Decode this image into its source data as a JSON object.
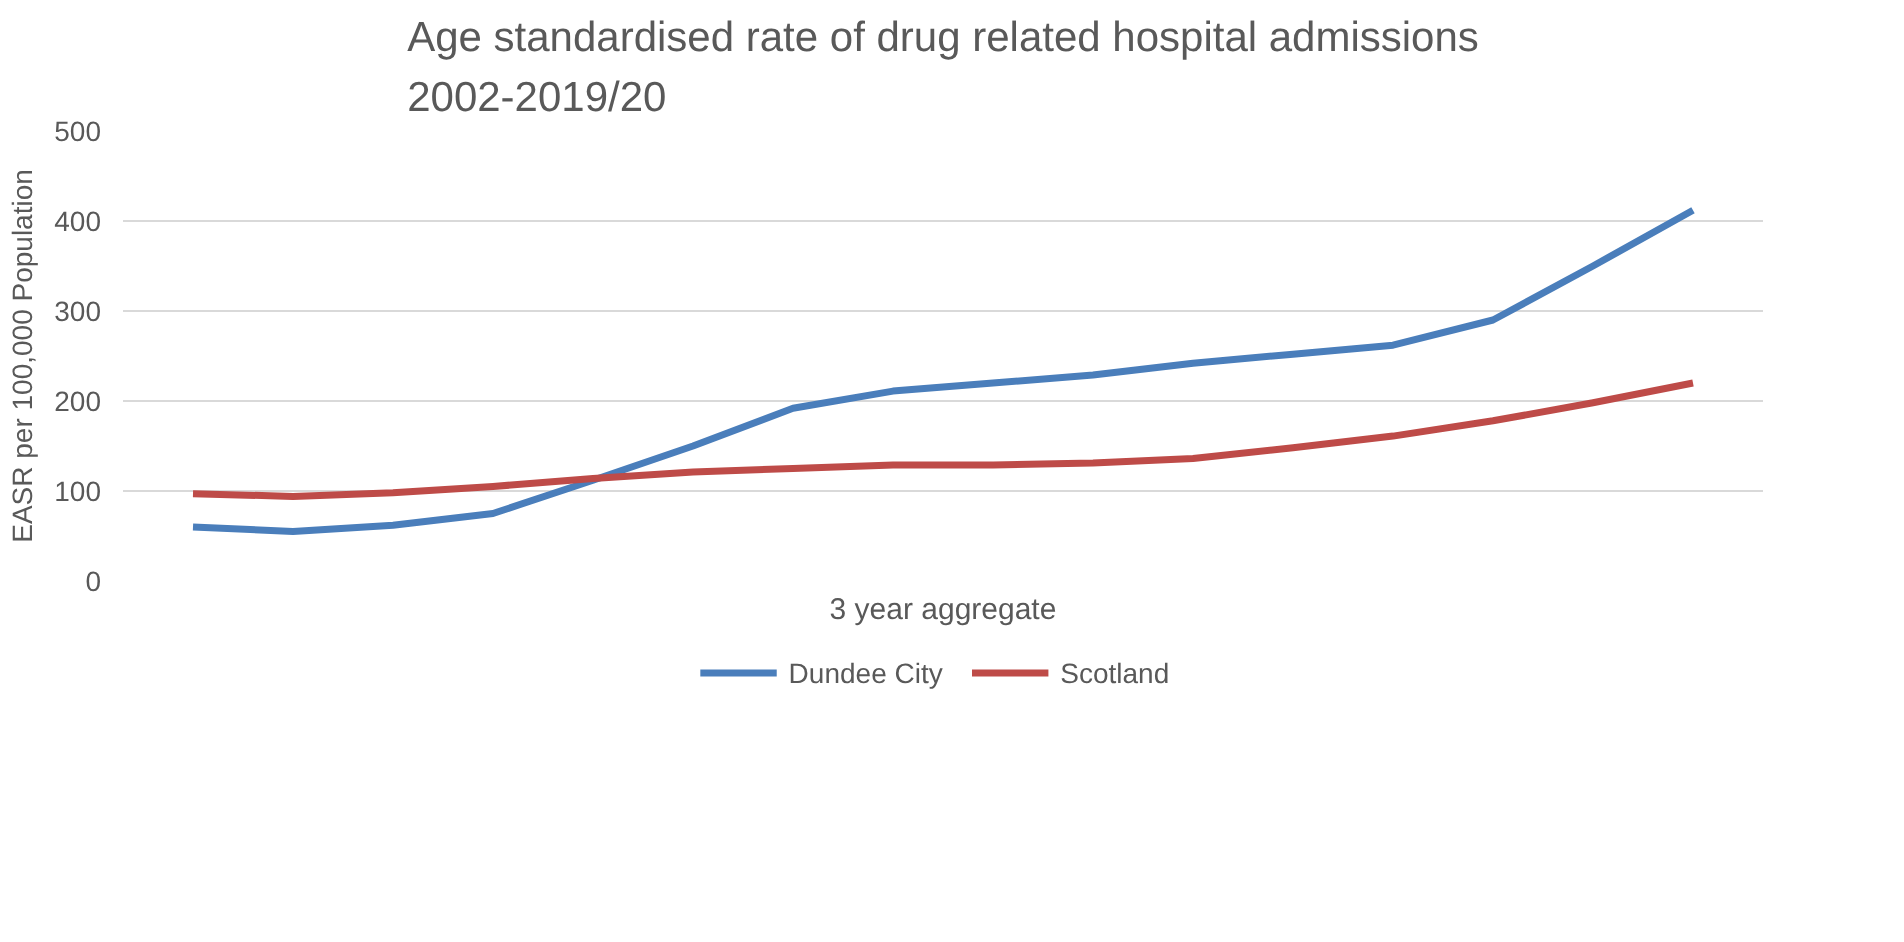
{
  "chart_data": {
    "type": "line",
    "title": "Age standardised rate of drug related hospital admissions\n2002-2019/20",
    "xlabel": "3 year aggregate",
    "ylabel": "EASR per 100,000 Population",
    "categories": [
      null,
      null,
      null,
      null,
      null,
      null,
      null,
      null,
      null,
      null,
      null,
      null,
      null,
      null,
      null,
      null
    ],
    "series": [
      {
        "name": "Dundee City",
        "color": "#4a7ebb",
        "values": [
          60,
          55,
          62,
          75,
          112,
          150,
          192,
          211,
          220,
          229,
          242,
          252,
          262,
          290,
          350,
          412
        ]
      },
      {
        "name": "Scotland",
        "color": "#be4b48",
        "values": [
          97,
          94,
          98,
          105,
          114,
          121,
          125,
          129,
          129,
          131,
          136,
          148,
          161,
          178,
          198,
          220
        ]
      }
    ],
    "ylim": [
      0,
      500
    ],
    "yticks": [
      0,
      100,
      200,
      300,
      400,
      500
    ],
    "grid": "y",
    "legend": "bottom",
    "tick_labels": "y"
  }
}
